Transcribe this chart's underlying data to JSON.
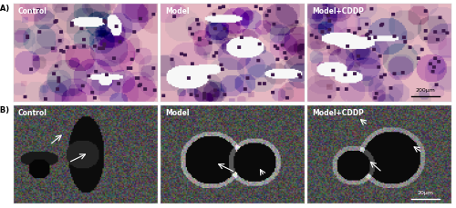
{
  "fig_width": 5.0,
  "fig_height": 2.3,
  "dpi": 100,
  "row_A_labels": [
    "Control",
    "Model",
    "Model+CDDP"
  ],
  "row_B_labels": [
    "Control",
    "Model",
    "Model+CDDP"
  ],
  "row_labels": [
    "(A)",
    "(B)"
  ],
  "scale_bar_A": "200μm",
  "scale_bar_B": "20μm",
  "label_color": "white",
  "label_fontsize": 5.5,
  "scalebar_fontsize": 4.5,
  "row_A_bg": "#e8b4c0",
  "row_B_bg": "#555555",
  "panel_label_color": "black",
  "panel_label_fontsize": 6,
  "outer_bg": "#ffffff",
  "border_color": "#cccccc"
}
